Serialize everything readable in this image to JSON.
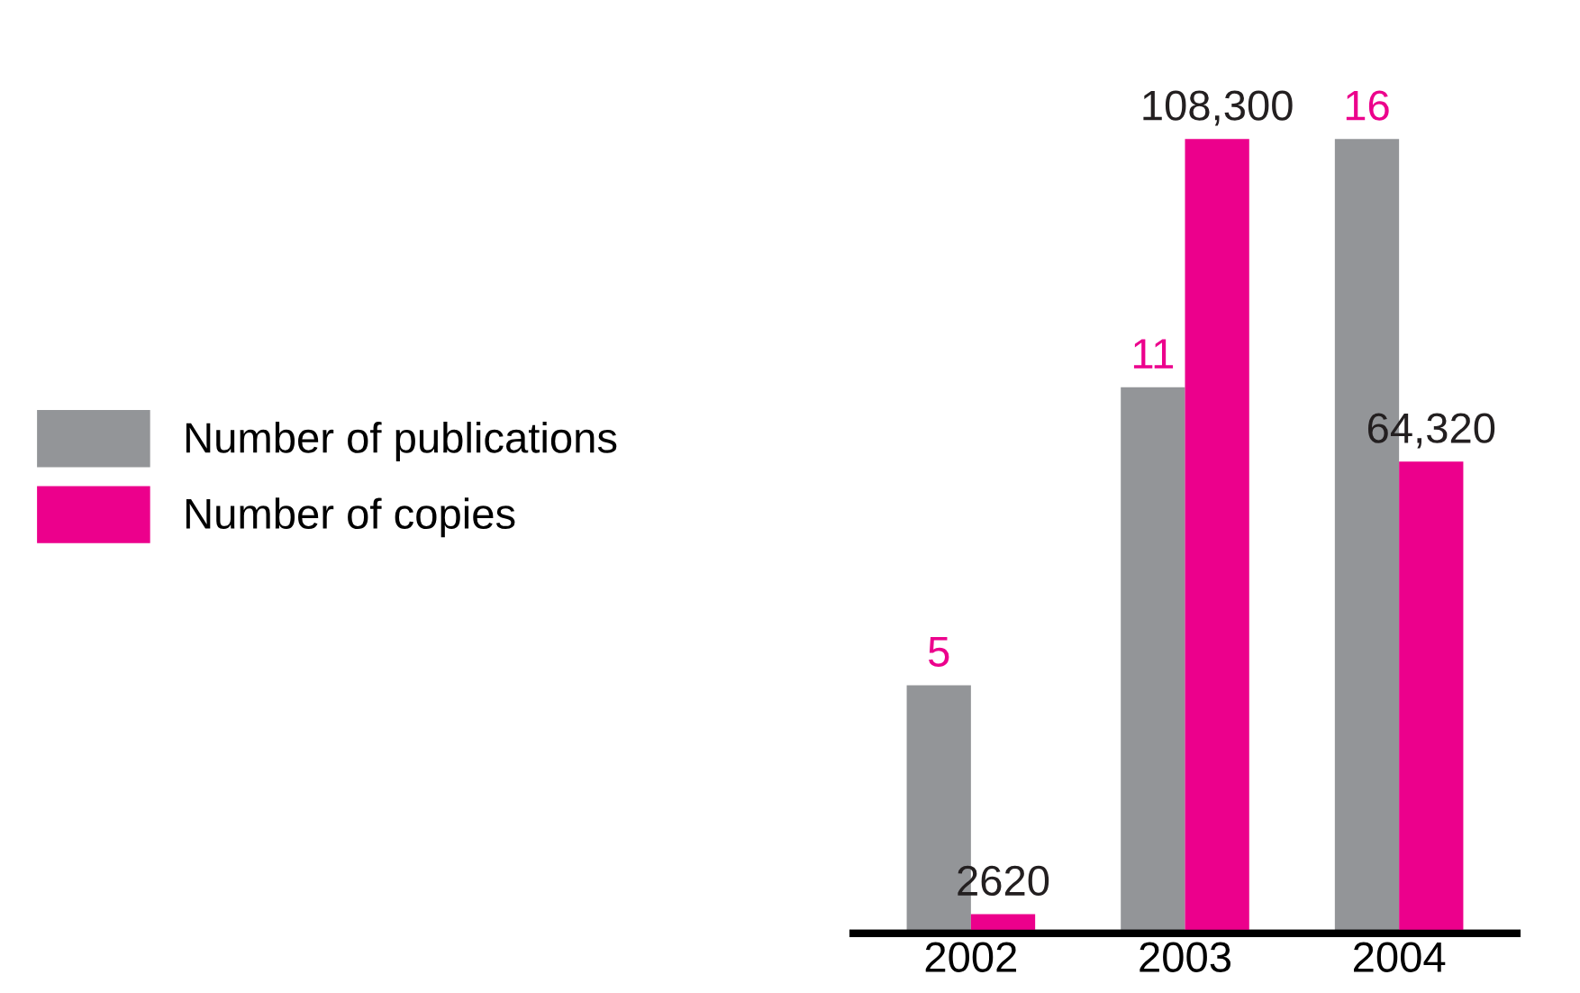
{
  "chart_data": {
    "type": "bar",
    "categories": [
      "2002",
      "2003",
      "2004"
    ],
    "series": [
      {
        "name": "Number of publications",
        "color": "#939598",
        "values": [
          5,
          11,
          16
        ]
      },
      {
        "name": "Number of copies",
        "color": "#ec008c",
        "values": [
          2620,
          108300,
          64320
        ],
        "axis": "y2",
        "value_labels": [
          "2620",
          "108,300",
          "64,320"
        ]
      }
    ],
    "data_labels": true,
    "legend": "left",
    "grid": false
  }
}
